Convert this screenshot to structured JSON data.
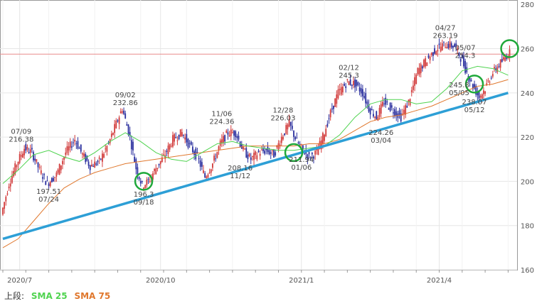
{
  "chart_data": {
    "type": "candlestick",
    "y_ticks": [
      "260",
      "240",
      "220",
      "200",
      "180",
      "160"
    ],
    "y_ticks_partial": [
      "280"
    ],
    "x_ticks": [
      "2020/7",
      "2020/10",
      "2021/1",
      "2021/4"
    ],
    "ylim": [
      160,
      282
    ],
    "grid": true,
    "reference_line": {
      "value": 257.5,
      "color": "#e88b8b"
    },
    "legend": {
      "prefix": "上段:",
      "items": [
        {
          "label": "SMA 25",
          "color": "#4fd34f"
        },
        {
          "label": "SMA 75",
          "color": "#e0782e"
        }
      ]
    },
    "annotations": [
      {
        "date": "07/09",
        "price": "216.38",
        "kind": "high"
      },
      {
        "date": "07/24",
        "price": "197.51",
        "kind": "low"
      },
      {
        "date": "09/02",
        "price": "232.86",
        "kind": "high"
      },
      {
        "date": "09/18",
        "price": "196.3",
        "kind": "low"
      },
      {
        "date": "11/06",
        "price": "224.36",
        "kind": "high"
      },
      {
        "date": "11/12",
        "price": "208.16",
        "kind": "low"
      },
      {
        "date": "12/28",
        "price": "226.03",
        "kind": "high"
      },
      {
        "date": "01/06",
        "price": "211.94",
        "kind": "low"
      },
      {
        "date": "02/12",
        "price": "245.3",
        "kind": "high"
      },
      {
        "date": "03/04",
        "price": "224.26",
        "kind": "low"
      },
      {
        "date": "04/27",
        "price": "263.19",
        "kind": "high"
      },
      {
        "date": "05/07",
        "price": "254.3",
        "kind": "high"
      },
      {
        "date": "05/05",
        "price": "245.8",
        "kind": "low"
      },
      {
        "date": "05/12",
        "price": "238.07",
        "kind": "low"
      }
    ],
    "sma25": [
      [
        0,
        199
      ],
      [
        10,
        205
      ],
      [
        20,
        212
      ],
      [
        30,
        214
      ],
      [
        40,
        211
      ],
      [
        50,
        209
      ],
      [
        60,
        213
      ],
      [
        70,
        218
      ],
      [
        80,
        222
      ],
      [
        90,
        218
      ],
      [
        100,
        213
      ],
      [
        110,
        210
      ],
      [
        120,
        209
      ],
      [
        130,
        213
      ],
      [
        140,
        217
      ],
      [
        150,
        218
      ],
      [
        160,
        216
      ],
      [
        170,
        215
      ],
      [
        180,
        214
      ],
      [
        190,
        214
      ],
      [
        200,
        215
      ],
      [
        210,
        216
      ],
      [
        220,
        221
      ],
      [
        230,
        229
      ],
      [
        240,
        235
      ],
      [
        250,
        237
      ],
      [
        260,
        237
      ],
      [
        270,
        235
      ],
      [
        280,
        236
      ],
      [
        290,
        242
      ],
      [
        300,
        250
      ],
      [
        310,
        252
      ],
      [
        320,
        251
      ],
      [
        330,
        248
      ]
    ],
    "sma75": [
      [
        0,
        170
      ],
      [
        10,
        174
      ],
      [
        20,
        182
      ],
      [
        30,
        190
      ],
      [
        40,
        197
      ],
      [
        50,
        201
      ],
      [
        60,
        204
      ],
      [
        70,
        206
      ],
      [
        80,
        208
      ],
      [
        90,
        209
      ],
      [
        100,
        210
      ],
      [
        110,
        211
      ],
      [
        120,
        212
      ],
      [
        130,
        213
      ],
      [
        140,
        214
      ],
      [
        150,
        215
      ],
      [
        160,
        216
      ],
      [
        170,
        216
      ],
      [
        180,
        216
      ],
      [
        190,
        216
      ],
      [
        200,
        217
      ],
      [
        210,
        217
      ],
      [
        220,
        219
      ],
      [
        230,
        223
      ],
      [
        240,
        227
      ],
      [
        250,
        229
      ],
      [
        260,
        230
      ],
      [
        270,
        232
      ],
      [
        280,
        234
      ],
      [
        290,
        237
      ],
      [
        300,
        240
      ],
      [
        310,
        243
      ],
      [
        320,
        244
      ],
      [
        330,
        246
      ]
    ],
    "trendline": [
      [
        0,
        174
      ],
      [
        330,
        240
      ]
    ],
    "price_path": [
      [
        0,
        185
      ],
      [
        5,
        199
      ],
      [
        10,
        208
      ],
      [
        15,
        215
      ],
      [
        20,
        213
      ],
      [
        25,
        205
      ],
      [
        30,
        199
      ],
      [
        36,
        203
      ],
      [
        42,
        213
      ],
      [
        48,
        219
      ],
      [
        53,
        212
      ],
      [
        58,
        207
      ],
      [
        64,
        209
      ],
      [
        70,
        217
      ],
      [
        75,
        226
      ],
      [
        79,
        233
      ],
      [
        84,
        220
      ],
      [
        88,
        206
      ],
      [
        92,
        198
      ],
      [
        96,
        200
      ],
      [
        101,
        206
      ],
      [
        106,
        211
      ],
      [
        112,
        219
      ],
      [
        118,
        222
      ],
      [
        123,
        216
      ],
      [
        128,
        211
      ],
      [
        133,
        202
      ],
      [
        138,
        208
      ],
      [
        143,
        217
      ],
      [
        148,
        222
      ],
      [
        153,
        222
      ],
      [
        158,
        214
      ],
      [
        163,
        210
      ],
      [
        168,
        213
      ],
      [
        173,
        214
      ],
      [
        178,
        212
      ],
      [
        183,
        220
      ],
      [
        188,
        226
      ],
      [
        193,
        218
      ],
      [
        197,
        214
      ],
      [
        201,
        211
      ],
      [
        206,
        213
      ],
      [
        210,
        220
      ],
      [
        215,
        231
      ],
      [
        220,
        240
      ],
      [
        226,
        245
      ],
      [
        231,
        244
      ],
      [
        236,
        240
      ],
      [
        240,
        233
      ],
      [
        245,
        229
      ],
      [
        250,
        236
      ],
      [
        256,
        232
      ],
      [
        261,
        229
      ],
      [
        266,
        236
      ],
      [
        272,
        250
      ],
      [
        278,
        255
      ],
      [
        284,
        260
      ],
      [
        290,
        262
      ],
      [
        296,
        261
      ],
      [
        300,
        256
      ],
      [
        303,
        251
      ],
      [
        306,
        246
      ],
      [
        309,
        242
      ],
      [
        312,
        238
      ],
      [
        316,
        242
      ],
      [
        320,
        248
      ],
      [
        324,
        252
      ],
      [
        328,
        255
      ],
      [
        331,
        258
      ]
    ],
    "highlight_circles": [
      {
        "i": 92,
        "price": 200
      },
      {
        "i": 190,
        "price": 213
      },
      {
        "i": 308,
        "price": 244
      },
      {
        "i": 331,
        "price": 260
      }
    ]
  }
}
